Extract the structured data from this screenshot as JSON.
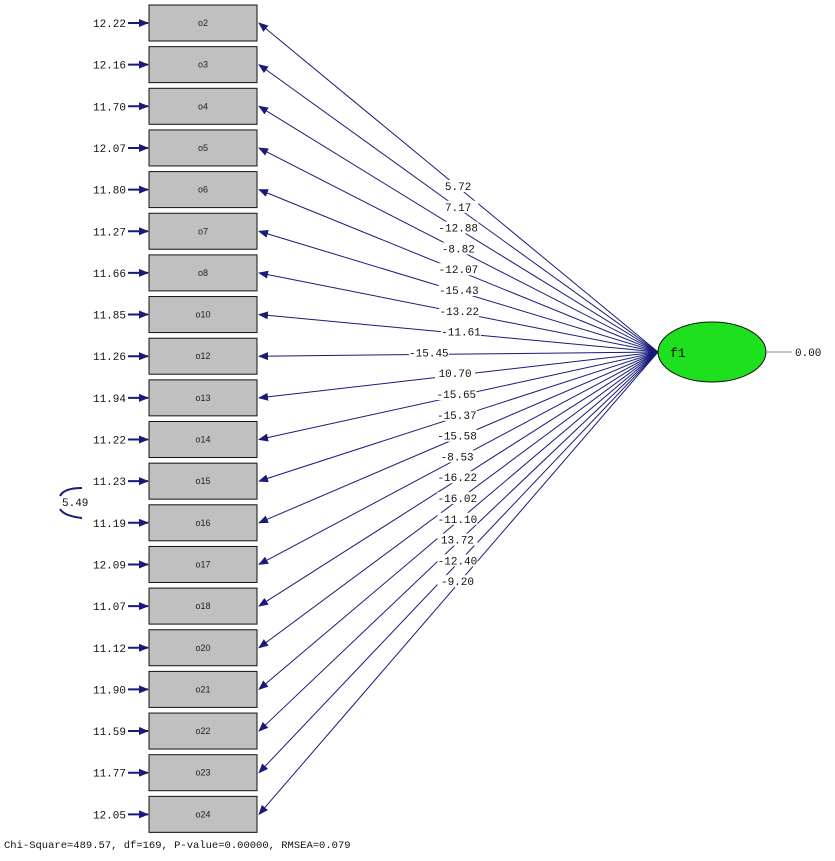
{
  "latent": {
    "name": "f1",
    "variance": "0.00",
    "fill": "#1fe01f"
  },
  "colors": {
    "arrow": "#1a1a7a",
    "box_fill": "#c0c0c0",
    "box_stroke": "#111111"
  },
  "indicators": [
    {
      "name": "o2",
      "error": "12.22",
      "loading": "5.72"
    },
    {
      "name": "o3",
      "error": "12.16",
      "loading": "7.17"
    },
    {
      "name": "o4",
      "error": "11.70",
      "loading": "-12.88"
    },
    {
      "name": "o5",
      "error": "12.07",
      "loading": "-8.82"
    },
    {
      "name": "o6",
      "error": "11.80",
      "loading": "-12.07"
    },
    {
      "name": "o7",
      "error": "11.27",
      "loading": "-15.43"
    },
    {
      "name": "o8",
      "error": "11.66",
      "loading": "-13.22"
    },
    {
      "name": "o10",
      "error": "11.85",
      "loading": "-11.61"
    },
    {
      "name": "o12",
      "error": "11.26",
      "loading": "-15.45"
    },
    {
      "name": "o13",
      "error": "11.94",
      "loading": "10.70"
    },
    {
      "name": "o14",
      "error": "11.22",
      "loading": "-15.65"
    },
    {
      "name": "o15",
      "error": "11.23",
      "loading": "-15.37"
    },
    {
      "name": "o16",
      "error": "11.19",
      "loading": "-15.58"
    },
    {
      "name": "o17",
      "error": "12.09",
      "loading": "-8.53"
    },
    {
      "name": "o18",
      "error": "11.07",
      "loading": "-16.22"
    },
    {
      "name": "o20",
      "error": "11.12",
      "loading": "-16.02"
    },
    {
      "name": "o21",
      "error": "11.90",
      "loading": "-11.10"
    },
    {
      "name": "o22",
      "error": "11.59",
      "loading": "13.72"
    },
    {
      "name": "o23",
      "error": "11.77",
      "loading": "-12.40"
    },
    {
      "name": "o24",
      "error": "12.05",
      "loading": "-9.20"
    }
  ],
  "error_covariance": {
    "value": "5.49",
    "between": [
      "o15",
      "o16"
    ]
  },
  "fit_summary": "Chi-Square=489.57, df=169, P-value=0.00000, RMSEA=0.079"
}
